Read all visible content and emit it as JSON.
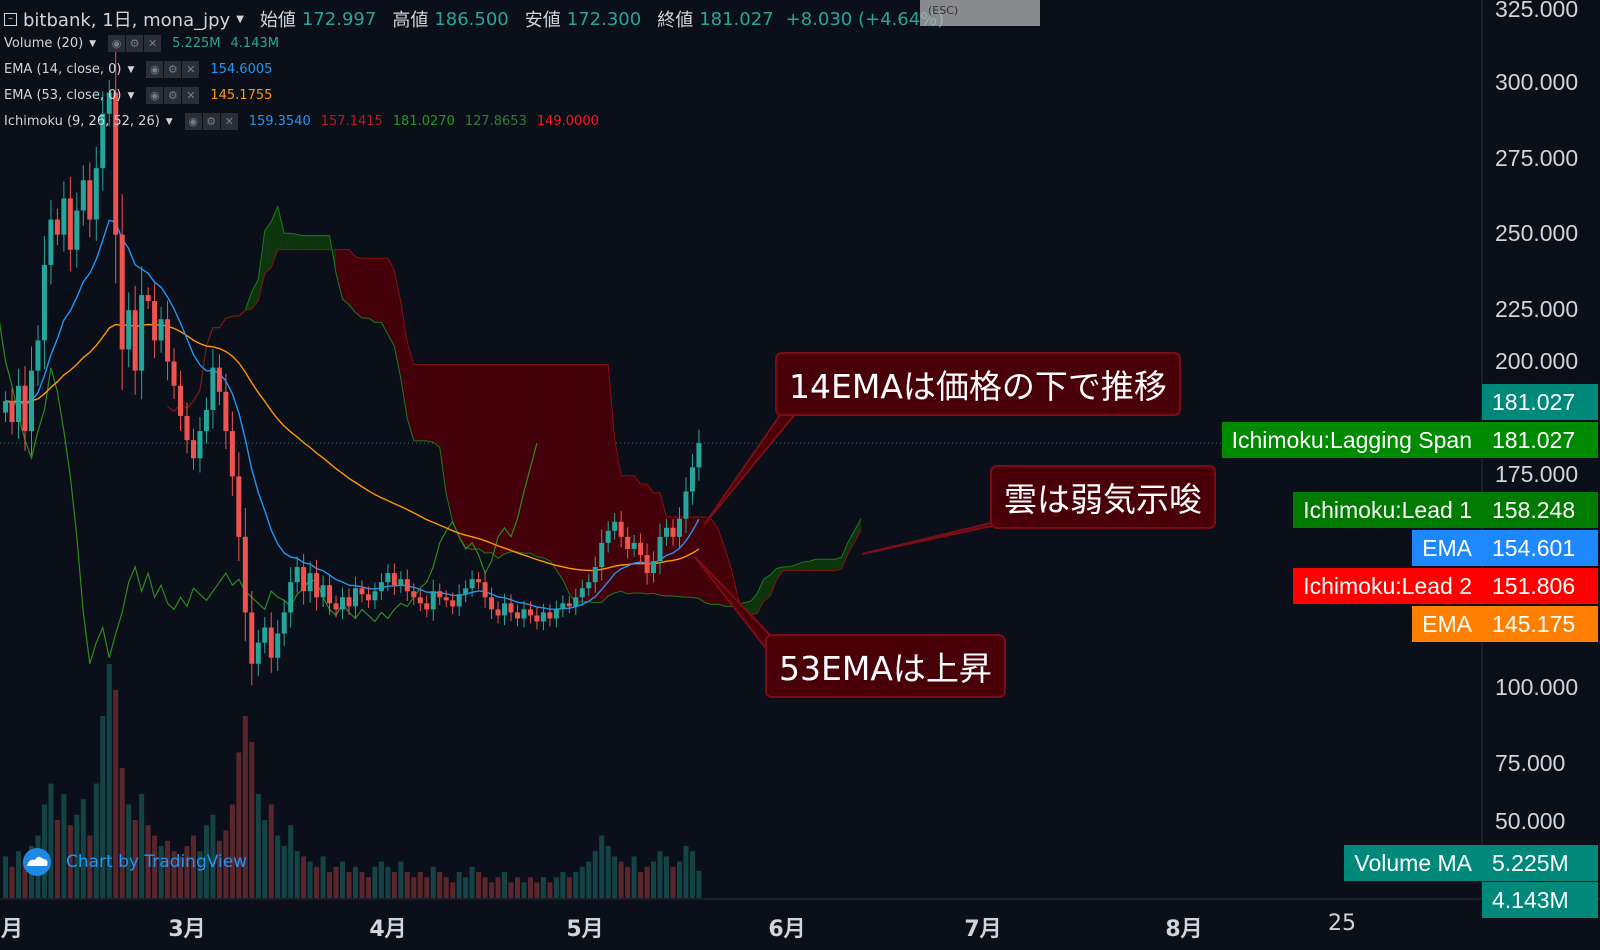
{
  "header": {
    "symbol": "bitbank, 1日, mona_jpy",
    "open_label": "始値",
    "open": "172.997",
    "high_label": "高値",
    "high": "186.500",
    "low_label": "安値",
    "low": "172.300",
    "close_label": "終値",
    "close": "181.027",
    "change": "+8.030 (+4.64%)",
    "exit_hint": "(ESC)"
  },
  "indicators": [
    {
      "name": "Volume (20)",
      "values": [
        "5.225M",
        "4.143M"
      ],
      "colors": [
        "#26a69a",
        "#26a69a"
      ]
    },
    {
      "name": "EMA (14, close, 0)",
      "values": [
        "154.6005"
      ],
      "colors": [
        "#2196f3"
      ]
    },
    {
      "name": "EMA (53, close, 0)",
      "values": [
        "145.1755"
      ],
      "colors": [
        "#ff9800"
      ]
    },
    {
      "name": "Ichimoku (9, 26, 52, 26)",
      "values": [
        "159.3540",
        "157.1415",
        "181.0270",
        "127.8653",
        "149.0000"
      ],
      "colors": [
        "#2196f3",
        "#b71c1c",
        "#1b9e1b",
        "#2e7d32",
        "#ff1a1a"
      ]
    }
  ],
  "annotations": [
    {
      "text": "14EMAは価格の下で推移"
    },
    {
      "text": "雲は弱気示唆"
    },
    {
      "text": "53EMAは上昇"
    }
  ],
  "price_labels": [
    {
      "label": "",
      "value": "181.027",
      "color": "#00897b"
    },
    {
      "label": "Ichimoku:Lagging Span",
      "value": "181.027",
      "color": "#008a00"
    },
    {
      "label": "Ichimoku:Lead 1",
      "value": "158.248",
      "color": "#007a00"
    },
    {
      "label": "EMA",
      "value": "154.601",
      "color": "#1e88ff"
    },
    {
      "label": "Ichimoku:Lead 2",
      "value": "151.806",
      "color": "#ff0000"
    },
    {
      "label": "EMA",
      "value": "145.175",
      "color": "#ff8000"
    },
    {
      "label": "Volume MA",
      "value": "5.225M",
      "color": "#00897b"
    },
    {
      "label": "",
      "value": "4.143M",
      "color": "#00897b"
    }
  ],
  "branding": "Chart by TradingView",
  "colors": {
    "up": "#26a69a",
    "down": "#ef5350",
    "ema14": "#2196f3",
    "ema53": "#ff9800",
    "lagging": "#2e8b1e",
    "cloud_bull": "#0d3b0d",
    "cloud_bear": "#4a0009",
    "background": "#0b0f19"
  },
  "chart_data": {
    "type": "candlestick",
    "interval": "1 day",
    "start_date": "02-01",
    "y_ticks": [
      "325.000",
      "300.000",
      "275.000",
      "250.000",
      "225.000",
      "200.000",
      "175.000",
      "100.000",
      "75.000",
      "50.000"
    ],
    "ylim": [
      50,
      325
    ],
    "x_ticks": [
      "月",
      "3月",
      "4月",
      "5月",
      "6月",
      "7月",
      "8月",
      "25"
    ],
    "close": [
      195,
      188,
      200,
      185,
      205,
      215,
      240,
      255,
      250,
      262,
      245,
      258,
      268,
      255,
      272,
      290,
      297,
      250,
      212,
      225,
      205,
      230,
      228,
      215,
      222,
      208,
      200,
      190,
      182,
      176,
      185,
      192,
      206,
      198,
      185,
      170,
      150,
      125,
      108,
      115,
      120,
      110,
      118,
      125,
      135,
      140,
      132,
      138,
      130,
      134,
      128,
      126,
      130,
      127,
      133,
      131,
      129,
      132,
      135,
      138,
      134,
      136,
      132,
      130,
      128,
      126,
      132,
      130,
      129,
      127,
      131,
      133,
      136,
      135,
      130,
      126,
      124,
      128,
      125,
      123,
      126,
      124,
      122,
      125,
      123,
      126,
      128,
      127,
      130,
      133,
      135,
      140,
      148,
      152,
      155,
      150,
      146,
      148,
      144,
      138,
      142,
      150,
      153,
      150,
      156,
      165,
      172.997,
      181.027
    ],
    "volume_millions": [
      8,
      6,
      9,
      7,
      10,
      12,
      18,
      22,
      15,
      20,
      14,
      16,
      19,
      12,
      22,
      35,
      45,
      40,
      25,
      18,
      15,
      20,
      14,
      12,
      10,
      11,
      9,
      8,
      10,
      12,
      9,
      14,
      16,
      11,
      13,
      18,
      28,
      35,
      30,
      20,
      15,
      18,
      12,
      10,
      14,
      9,
      8,
      7,
      6,
      8,
      5,
      6,
      7,
      5,
      6,
      5,
      4,
      6,
      7,
      6,
      5,
      7,
      5,
      4,
      5,
      4,
      6,
      5,
      4,
      3,
      5,
      4,
      6,
      5,
      4,
      3,
      4,
      5,
      3,
      4,
      3,
      4,
      3,
      4,
      3,
      4,
      5,
      4,
      5,
      6,
      7,
      9,
      12,
      10,
      8,
      7,
      6,
      8,
      5,
      6,
      7,
      9,
      8,
      6,
      7,
      10,
      9,
      5.225
    ]
  }
}
